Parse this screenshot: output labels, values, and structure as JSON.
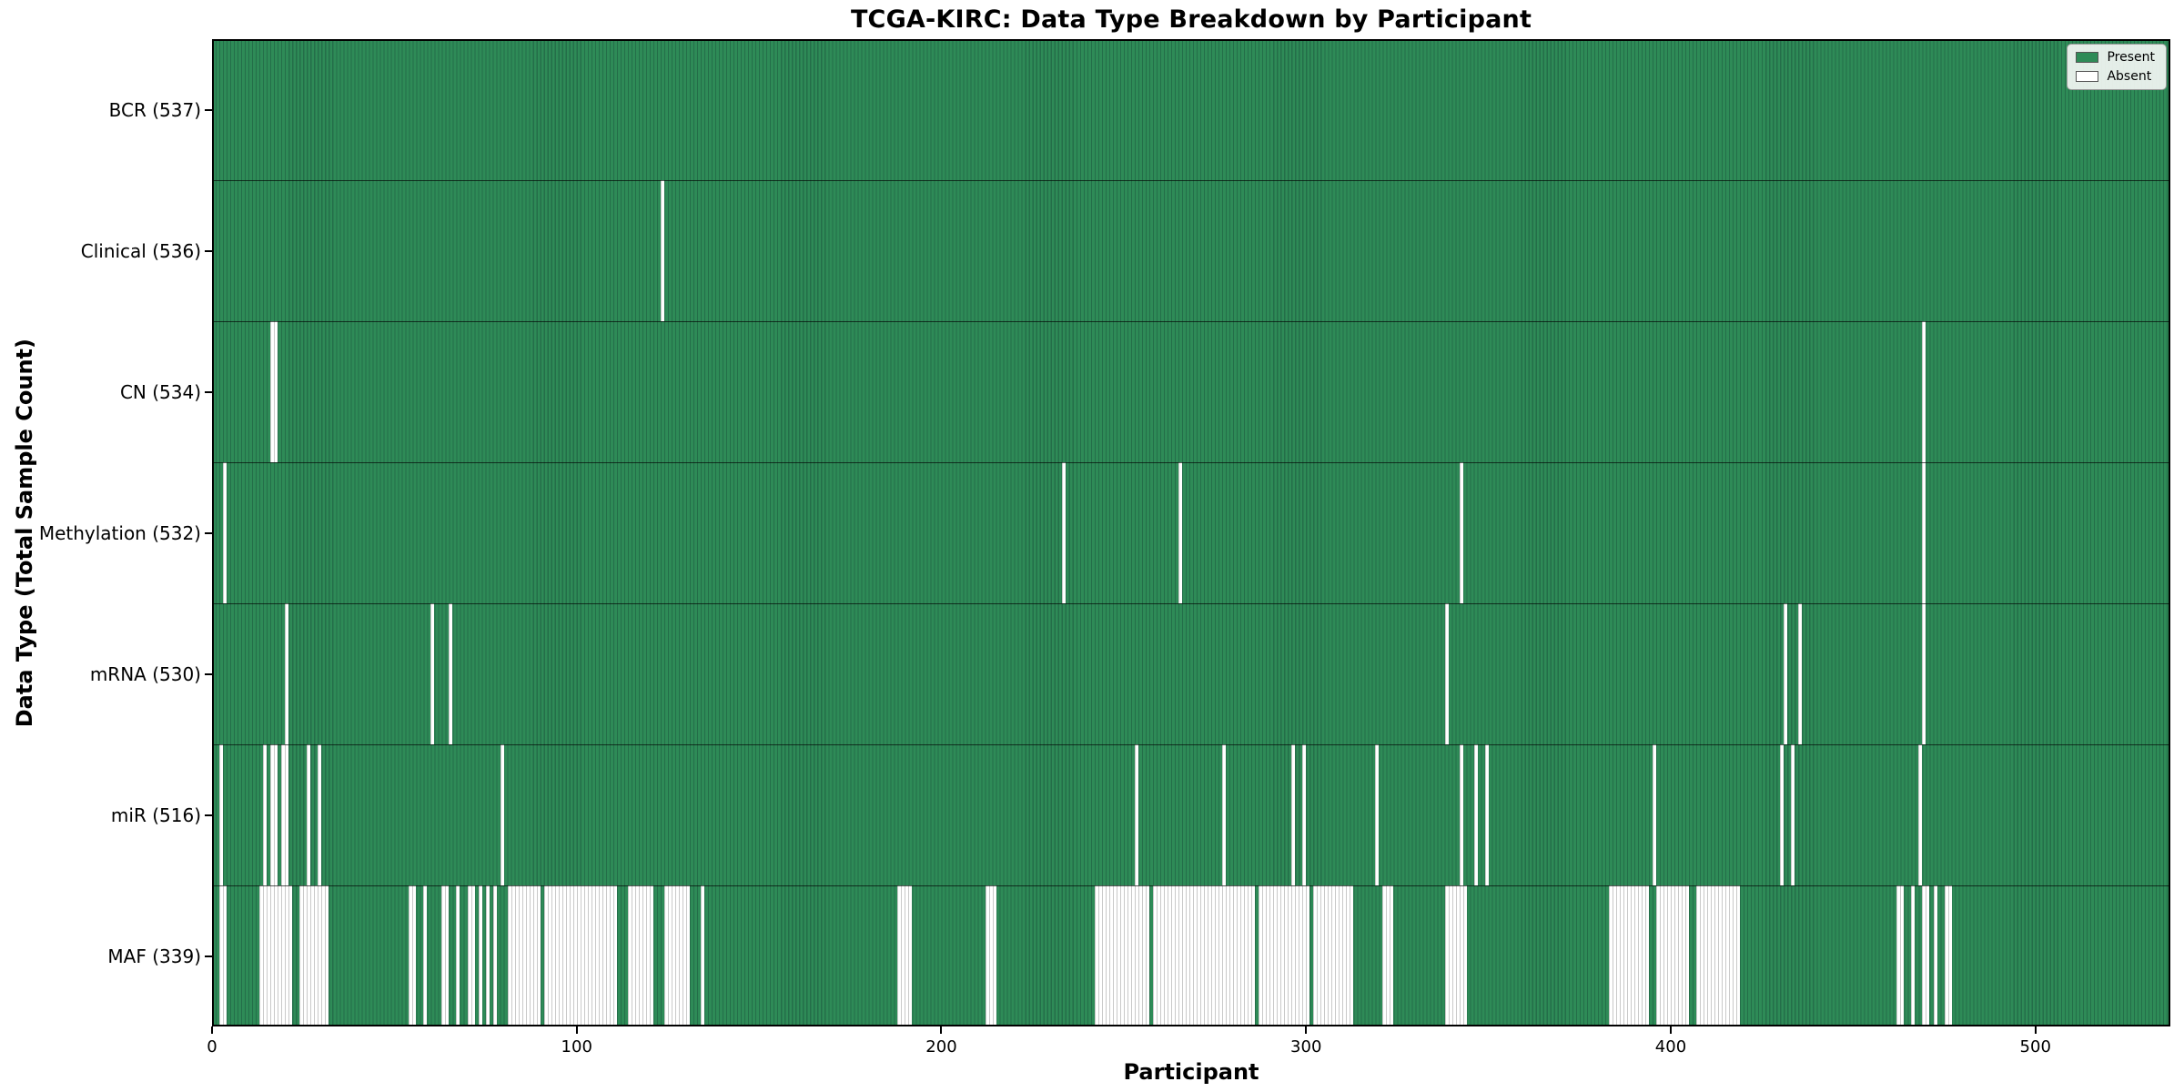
{
  "title": "TCGA-KIRC: Data Type Breakdown by Participant",
  "colors": {
    "present": "#2e8b57",
    "present_edge": "#246e49",
    "absent": "#ffffff",
    "absent_edge": "#c9c9c9",
    "plot_border": "#000000",
    "legend_background": "#f4f6f4",
    "legend_border": "#9a9a9a"
  },
  "chart_data": {
    "type": "heatmap",
    "title": "TCGA-KIRC: Data Type Breakdown by Participant",
    "xlabel": "Participant",
    "ylabel": "Data Type (Total Sample Count)",
    "x_ticks": [
      0,
      100,
      200,
      300,
      400,
      500
    ],
    "x_range": [
      0,
      537
    ],
    "n_participants": 537,
    "grid": false,
    "legend": {
      "position": "upper right",
      "entries": [
        {
          "label": "Present",
          "color": "#2e8b57"
        },
        {
          "label": "Absent",
          "color": "#ffffff"
        }
      ]
    },
    "rows": [
      {
        "data_type": "BCR",
        "label": "BCR (537)",
        "present_count": 537,
        "absent_count": 0,
        "absent_indices": []
      },
      {
        "data_type": "Clinical",
        "label": "Clinical (536)",
        "present_count": 536,
        "absent_count": 1,
        "absent_indices": [
          123
        ]
      },
      {
        "data_type": "CN",
        "label": "CN (534)",
        "present_count": 534,
        "absent_count": 3,
        "absent_indices": [
          16,
          17,
          469
        ]
      },
      {
        "data_type": "Methylation",
        "label": "Methylation (532)",
        "present_count": 532,
        "absent_count": 5,
        "absent_indices": [
          3,
          233,
          265,
          342,
          469
        ]
      },
      {
        "data_type": "mRNA",
        "label": "mRNA (530)",
        "present_count": 530,
        "absent_count": 7,
        "absent_indices": [
          20,
          60,
          65,
          338,
          431,
          435,
          469
        ]
      },
      {
        "data_type": "miR",
        "label": "miR (516)",
        "present_count": 516,
        "absent_count": 21,
        "absent_indices": [
          2,
          14,
          16,
          17,
          19,
          20,
          26,
          29,
          79,
          253,
          277,
          296,
          299,
          319,
          342,
          346,
          349,
          395,
          430,
          433,
          468
        ]
      },
      {
        "data_type": "MAF",
        "label": "MAF (339)",
        "present_count": 339,
        "absent_count": 198,
        "absent_indices": [
          2,
          3,
          13,
          14,
          15,
          16,
          17,
          18,
          19,
          20,
          21,
          24,
          25,
          26,
          27,
          28,
          29,
          30,
          31,
          54,
          55,
          58,
          63,
          64,
          67,
          70,
          71,
          73,
          75,
          77,
          81,
          82,
          83,
          84,
          85,
          86,
          87,
          88,
          89,
          91,
          92,
          93,
          94,
          95,
          96,
          97,
          98,
          99,
          100,
          101,
          102,
          103,
          104,
          105,
          106,
          107,
          108,
          109,
          110,
          114,
          115,
          116,
          117,
          118,
          119,
          120,
          124,
          125,
          126,
          127,
          128,
          129,
          130,
          134,
          188,
          189,
          190,
          191,
          212,
          213,
          214,
          242,
          243,
          244,
          245,
          246,
          247,
          248,
          249,
          250,
          251,
          252,
          253,
          254,
          255,
          256,
          258,
          259,
          260,
          261,
          262,
          263,
          264,
          265,
          266,
          267,
          268,
          269,
          270,
          271,
          272,
          273,
          274,
          275,
          276,
          277,
          278,
          279,
          280,
          281,
          282,
          283,
          284,
          285,
          287,
          288,
          289,
          290,
          291,
          292,
          293,
          294,
          295,
          296,
          297,
          298,
          299,
          300,
          302,
          303,
          304,
          305,
          306,
          307,
          308,
          309,
          310,
          311,
          312,
          321,
          322,
          323,
          338,
          339,
          340,
          341,
          342,
          343,
          383,
          384,
          385,
          386,
          387,
          388,
          389,
          390,
          391,
          392,
          393,
          396,
          397,
          398,
          399,
          400,
          401,
          402,
          403,
          404,
          407,
          408,
          409,
          410,
          411,
          412,
          413,
          414,
          415,
          416,
          417,
          418,
          462,
          463,
          466,
          469,
          470,
          472,
          475,
          476
        ]
      }
    ]
  }
}
